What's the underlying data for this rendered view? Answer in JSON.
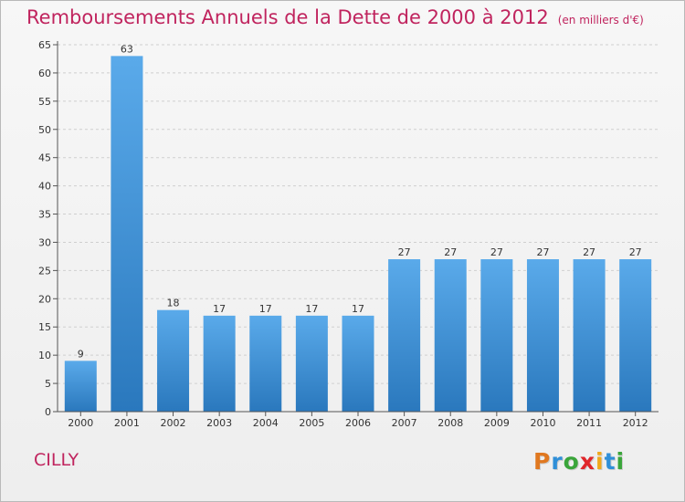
{
  "header": {
    "title": "Remboursements Annuels de la Dette de 2000 à 2012",
    "unit_note": "(en milliers d'€)"
  },
  "commune": "CILLY",
  "logo": {
    "text": "Proxiti",
    "letters": [
      {
        "ch": "P",
        "color": "#e07820"
      },
      {
        "ch": "r",
        "color": "#2f8fd8"
      },
      {
        "ch": "o",
        "color": "#3aa53a"
      },
      {
        "ch": "x",
        "color": "#e0262a"
      },
      {
        "ch": "i",
        "color": "#f0a81c"
      },
      {
        "ch": "t",
        "color": "#2f8fd8"
      },
      {
        "ch": "i",
        "color": "#3aa53a"
      }
    ]
  },
  "chart_data": {
    "type": "bar",
    "title": "Remboursements Annuels de la Dette de 2000 à 2012",
    "categories": [
      "2000",
      "2001",
      "2002",
      "2003",
      "2004",
      "2005",
      "2006",
      "2007",
      "2008",
      "2009",
      "2010",
      "2011",
      "2012"
    ],
    "values": [
      9,
      63,
      18,
      17,
      17,
      17,
      17,
      27,
      27,
      27,
      27,
      27,
      27
    ],
    "ylim": [
      0,
      65
    ],
    "yticks": [
      0,
      5,
      10,
      15,
      20,
      25,
      30,
      35,
      40,
      45,
      50,
      55,
      60,
      65
    ],
    "grid": "horizontal dashed",
    "bar_color": "#3b8fd6"
  }
}
